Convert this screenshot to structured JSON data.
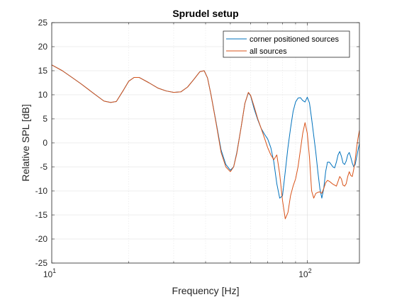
{
  "chart_data": {
    "type": "line",
    "title": "Sprudel setup",
    "xlabel": "Frequency [Hz]",
    "ylabel": "Relative SPL [dB]",
    "xscale": "log",
    "xlim": [
      10,
      160
    ],
    "ylim": [
      -25,
      25
    ],
    "grid": true,
    "legend_position": "top-right",
    "x_ticks": [
      {
        "value": 10,
        "base": "10",
        "exp": "1"
      },
      {
        "value": 100,
        "base": "10",
        "exp": "2"
      }
    ],
    "y_ticks": [
      "25",
      "20",
      "15",
      "10",
      "5",
      "0",
      "-5",
      "-10",
      "-15",
      "-20",
      "-25"
    ],
    "colors": {
      "corner": "#0072BD",
      "all": "#D95319"
    },
    "series": [
      {
        "name": "corner positioned sources",
        "color": "#0072BD",
        "x": [
          10,
          11,
          12,
          13,
          14,
          15,
          16,
          17,
          17.9,
          19,
          20,
          21,
          22,
          24,
          26,
          28,
          30,
          32,
          34,
          36,
          38,
          39.5,
          40.7,
          42,
          44,
          46,
          48,
          50,
          51.5,
          53,
          55,
          57,
          58.8,
          60,
          62,
          64,
          66,
          68,
          70,
          72,
          74,
          76,
          78,
          80,
          82,
          84,
          86,
          88,
          90,
          92,
          94,
          96,
          98,
          100,
          102,
          104,
          106,
          108,
          110,
          112,
          114,
          116,
          118,
          120,
          122,
          124,
          126,
          128,
          130,
          132,
          134,
          136,
          138,
          140,
          142,
          144,
          146,
          148,
          150,
          152,
          154,
          156,
          158,
          160
        ],
        "y": [
          16.2,
          15.0,
          13.6,
          12.3,
          11.0,
          9.8,
          8.7,
          8.4,
          8.6,
          10.8,
          12.8,
          13.6,
          13.6,
          12.5,
          11.4,
          10.8,
          10.5,
          10.6,
          11.6,
          13.2,
          14.8,
          15.0,
          13.5,
          10.0,
          4.2,
          -1.5,
          -4.5,
          -5.7,
          -5.0,
          -2.0,
          3.0,
          8.2,
          10.4,
          9.8,
          7.0,
          4.8,
          3.0,
          1.8,
          0.8,
          -1.0,
          -4.0,
          -8.5,
          -11.5,
          -11.0,
          -6.0,
          -1.0,
          3.0,
          6.5,
          8.5,
          9.3,
          9.4,
          8.8,
          8.5,
          9.5,
          8.3,
          5.0,
          1.5,
          -2.0,
          -6.0,
          -9.5,
          -11.5,
          -9.5,
          -6.0,
          -4.0,
          -4.0,
          -4.5,
          -5.0,
          -5.2,
          -4.0,
          -2.5,
          -1.8,
          -2.8,
          -4.2,
          -4.5,
          -3.8,
          -2.5,
          -2.0,
          -3.0,
          -4.2,
          -5.0,
          -4.5,
          -3.0,
          -1.5,
          -0.2
        ]
      },
      {
        "name": "all sources",
        "color": "#D95319",
        "x": [
          10,
          11,
          12,
          13,
          14,
          15,
          16,
          17,
          17.9,
          19,
          20,
          21,
          22,
          24,
          26,
          28,
          30,
          32,
          34,
          36,
          38,
          39.5,
          40.7,
          42,
          44,
          46,
          48,
          50,
          51.5,
          53,
          55,
          57,
          58.8,
          60,
          62,
          64,
          66,
          68,
          70,
          72,
          74,
          76,
          78,
          80,
          82,
          84,
          86,
          88,
          90,
          92,
          94,
          96,
          98,
          100,
          102,
          104,
          106,
          108,
          110,
          112,
          114,
          116,
          118,
          120,
          122,
          124,
          126,
          128,
          130,
          132,
          134,
          136,
          138,
          140,
          142,
          144,
          146,
          148,
          150,
          152,
          154,
          156,
          158,
          160
        ],
        "y": [
          16.2,
          15.0,
          13.6,
          12.3,
          11.0,
          9.8,
          8.7,
          8.4,
          8.6,
          10.8,
          12.8,
          13.6,
          13.6,
          12.5,
          11.4,
          10.8,
          10.5,
          10.6,
          11.6,
          13.2,
          14.8,
          15.0,
          13.5,
          10.0,
          4.0,
          -2.0,
          -5.0,
          -6.0,
          -5.0,
          -2.2,
          3.0,
          8.2,
          10.5,
          9.9,
          7.5,
          5.0,
          3.0,
          1.0,
          -1.0,
          -2.5,
          -3.5,
          -2.5,
          -6.5,
          -12.0,
          -15.8,
          -14.5,
          -11.0,
          -9.0,
          -7.5,
          -5.0,
          -1.5,
          2.0,
          4.2,
          2.0,
          -3.0,
          -10.0,
          -11.5,
          -10.5,
          -10.3,
          -10.2,
          -10.5,
          -9.5,
          -8.3,
          -7.8,
          -8.0,
          -8.3,
          -8.6,
          -8.8,
          -9.0,
          -8.0,
          -7.0,
          -7.5,
          -8.8,
          -9.0,
          -8.5,
          -7.0,
          -6.0,
          -6.8,
          -7.0,
          -5.5,
          -3.5,
          -1.0,
          1.0,
          2.6
        ]
      }
    ]
  }
}
